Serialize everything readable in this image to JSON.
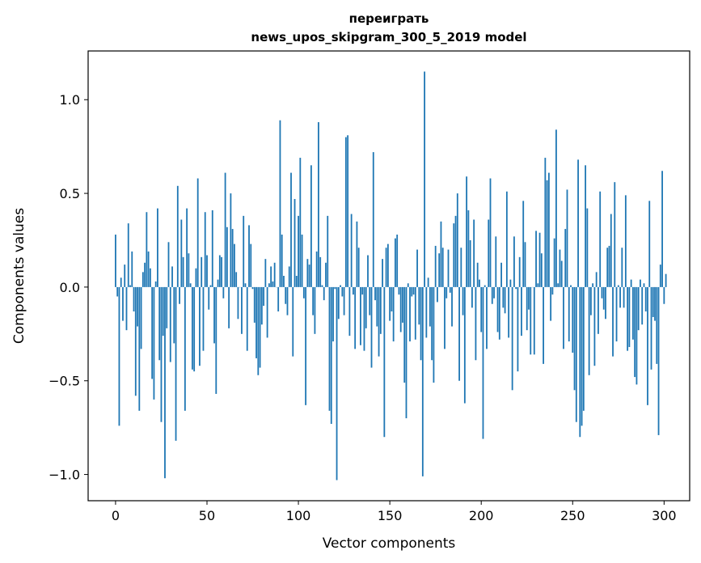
{
  "chart_data": {
    "type": "bar",
    "title_lines": [
      "переиграть",
      "news_upos_skipgram_300_5_2019 model"
    ],
    "xlabel": "Vector components",
    "ylabel": "Components values",
    "x_ticks": [
      0,
      50,
      100,
      150,
      200,
      250,
      300
    ],
    "x_tick_labels": [
      "0",
      "50",
      "100",
      "150",
      "200",
      "250",
      "300"
    ],
    "y_ticks": [
      -1.0,
      -0.5,
      0.0,
      0.5,
      1.0
    ],
    "y_tick_labels": [
      "−1.0",
      "−0.5",
      "0.0",
      "0.5",
      "1.0"
    ],
    "xlim": [
      -15,
      314
    ],
    "ylim": [
      -1.14,
      1.26
    ],
    "grid": false,
    "bar_color": "#1f77b4",
    "values": [
      0.28,
      -0.05,
      -0.74,
      0.05,
      -0.18,
      0.12,
      -0.23,
      0.34,
      0.01,
      0.19,
      -0.13,
      -0.58,
      -0.21,
      -0.66,
      -0.33,
      0.08,
      0.13,
      0.4,
      0.19,
      0.1,
      -0.49,
      -0.6,
      0.03,
      0.42,
      -0.39,
      -0.72,
      -0.26,
      -1.02,
      -0.22,
      0.24,
      -0.4,
      0.11,
      -0.3,
      -0.82,
      0.54,
      -0.09,
      0.36,
      0.16,
      -0.66,
      0.42,
      0.18,
      0.02,
      -0.44,
      -0.45,
      0.1,
      0.58,
      -0.42,
      0.16,
      -0.34,
      0.4,
      0.17,
      -0.12,
      0.01,
      0.41,
      -0.3,
      -0.57,
      0.04,
      0.17,
      0.16,
      -0.06,
      0.61,
      0.32,
      -0.22,
      0.5,
      0.31,
      0.23,
      0.08,
      -0.17,
      0.0,
      -0.25,
      0.38,
      0.02,
      -0.34,
      0.33,
      0.23,
      -0.01,
      -0.19,
      -0.38,
      -0.47,
      -0.43,
      -0.2,
      -0.1,
      0.15,
      -0.27,
      0.02,
      0.11,
      0.03,
      0.13,
      0.0,
      -0.13,
      0.89,
      0.28,
      0.06,
      -0.09,
      -0.15,
      0.11,
      0.61,
      -0.37,
      0.47,
      0.06,
      0.38,
      0.69,
      0.28,
      -0.06,
      -0.63,
      0.15,
      0.12,
      0.65,
      -0.15,
      -0.25,
      0.19,
      0.88,
      0.16,
      0.01,
      -0.07,
      0.13,
      0.38,
      -0.66,
      -0.73,
      -0.29,
      -0.01,
      -1.03,
      -0.17,
      0.01,
      -0.05,
      -0.15,
      0.8,
      0.81,
      -0.26,
      0.39,
      -0.04,
      -0.33,
      0.35,
      0.21,
      -0.31,
      -0.04,
      -0.34,
      -0.22,
      0.17,
      -0.15,
      -0.43,
      0.72,
      -0.07,
      -0.21,
      -0.37,
      -0.25,
      0.15,
      -0.8,
      0.21,
      0.23,
      -0.18,
      -0.13,
      -0.29,
      0.26,
      0.28,
      -0.04,
      -0.24,
      -0.19,
      -0.51,
      -0.7,
      0.02,
      -0.29,
      -0.05,
      -0.04,
      -0.28,
      0.2,
      -0.2,
      -0.39,
      -1.01,
      1.15,
      -0.27,
      0.05,
      -0.21,
      -0.39,
      -0.51,
      0.22,
      -0.08,
      0.18,
      0.35,
      0.21,
      -0.33,
      -0.06,
      0.2,
      -0.03,
      -0.21,
      0.34,
      0.38,
      0.5,
      -0.5,
      0.21,
      -0.15,
      -0.62,
      0.59,
      0.41,
      0.25,
      -0.11,
      0.36,
      -0.39,
      0.13,
      0.04,
      -0.24,
      -0.81,
      0.01,
      -0.33,
      0.36,
      0.58,
      -0.09,
      -0.06,
      0.27,
      -0.24,
      -0.28,
      0.13,
      -0.11,
      -0.14,
      0.51,
      -0.27,
      0.04,
      -0.55,
      0.27,
      -0.01,
      -0.45,
      0.16,
      -0.26,
      0.46,
      0.24,
      -0.23,
      -0.12,
      -0.36,
      0.0,
      -0.36,
      0.3,
      0.02,
      0.29,
      0.18,
      -0.41,
      0.69,
      0.57,
      0.61,
      -0.18,
      -0.04,
      0.26,
      0.84,
      0.02,
      0.2,
      0.14,
      -0.33,
      0.31,
      0.52,
      -0.29,
      0.01,
      -0.35,
      -0.55,
      -0.72,
      0.68,
      -0.8,
      -0.74,
      -0.66,
      0.65,
      0.42,
      -0.47,
      -0.15,
      0.02,
      -0.42,
      0.08,
      -0.25,
      0.51,
      -0.06,
      -0.12,
      -0.17,
      0.21,
      0.22,
      0.39,
      -0.37,
      0.56,
      -0.29,
      0.01,
      -0.11,
      0.21,
      -0.11,
      0.49,
      -0.34,
      -0.32,
      0.04,
      -0.28,
      -0.48,
      -0.52,
      -0.23,
      0.04,
      -0.2,
      0.02,
      -0.13,
      -0.63,
      0.46,
      -0.44,
      -0.16,
      -0.18,
      -0.41,
      -0.79,
      0.12,
      0.62,
      -0.09,
      0.07
    ]
  }
}
